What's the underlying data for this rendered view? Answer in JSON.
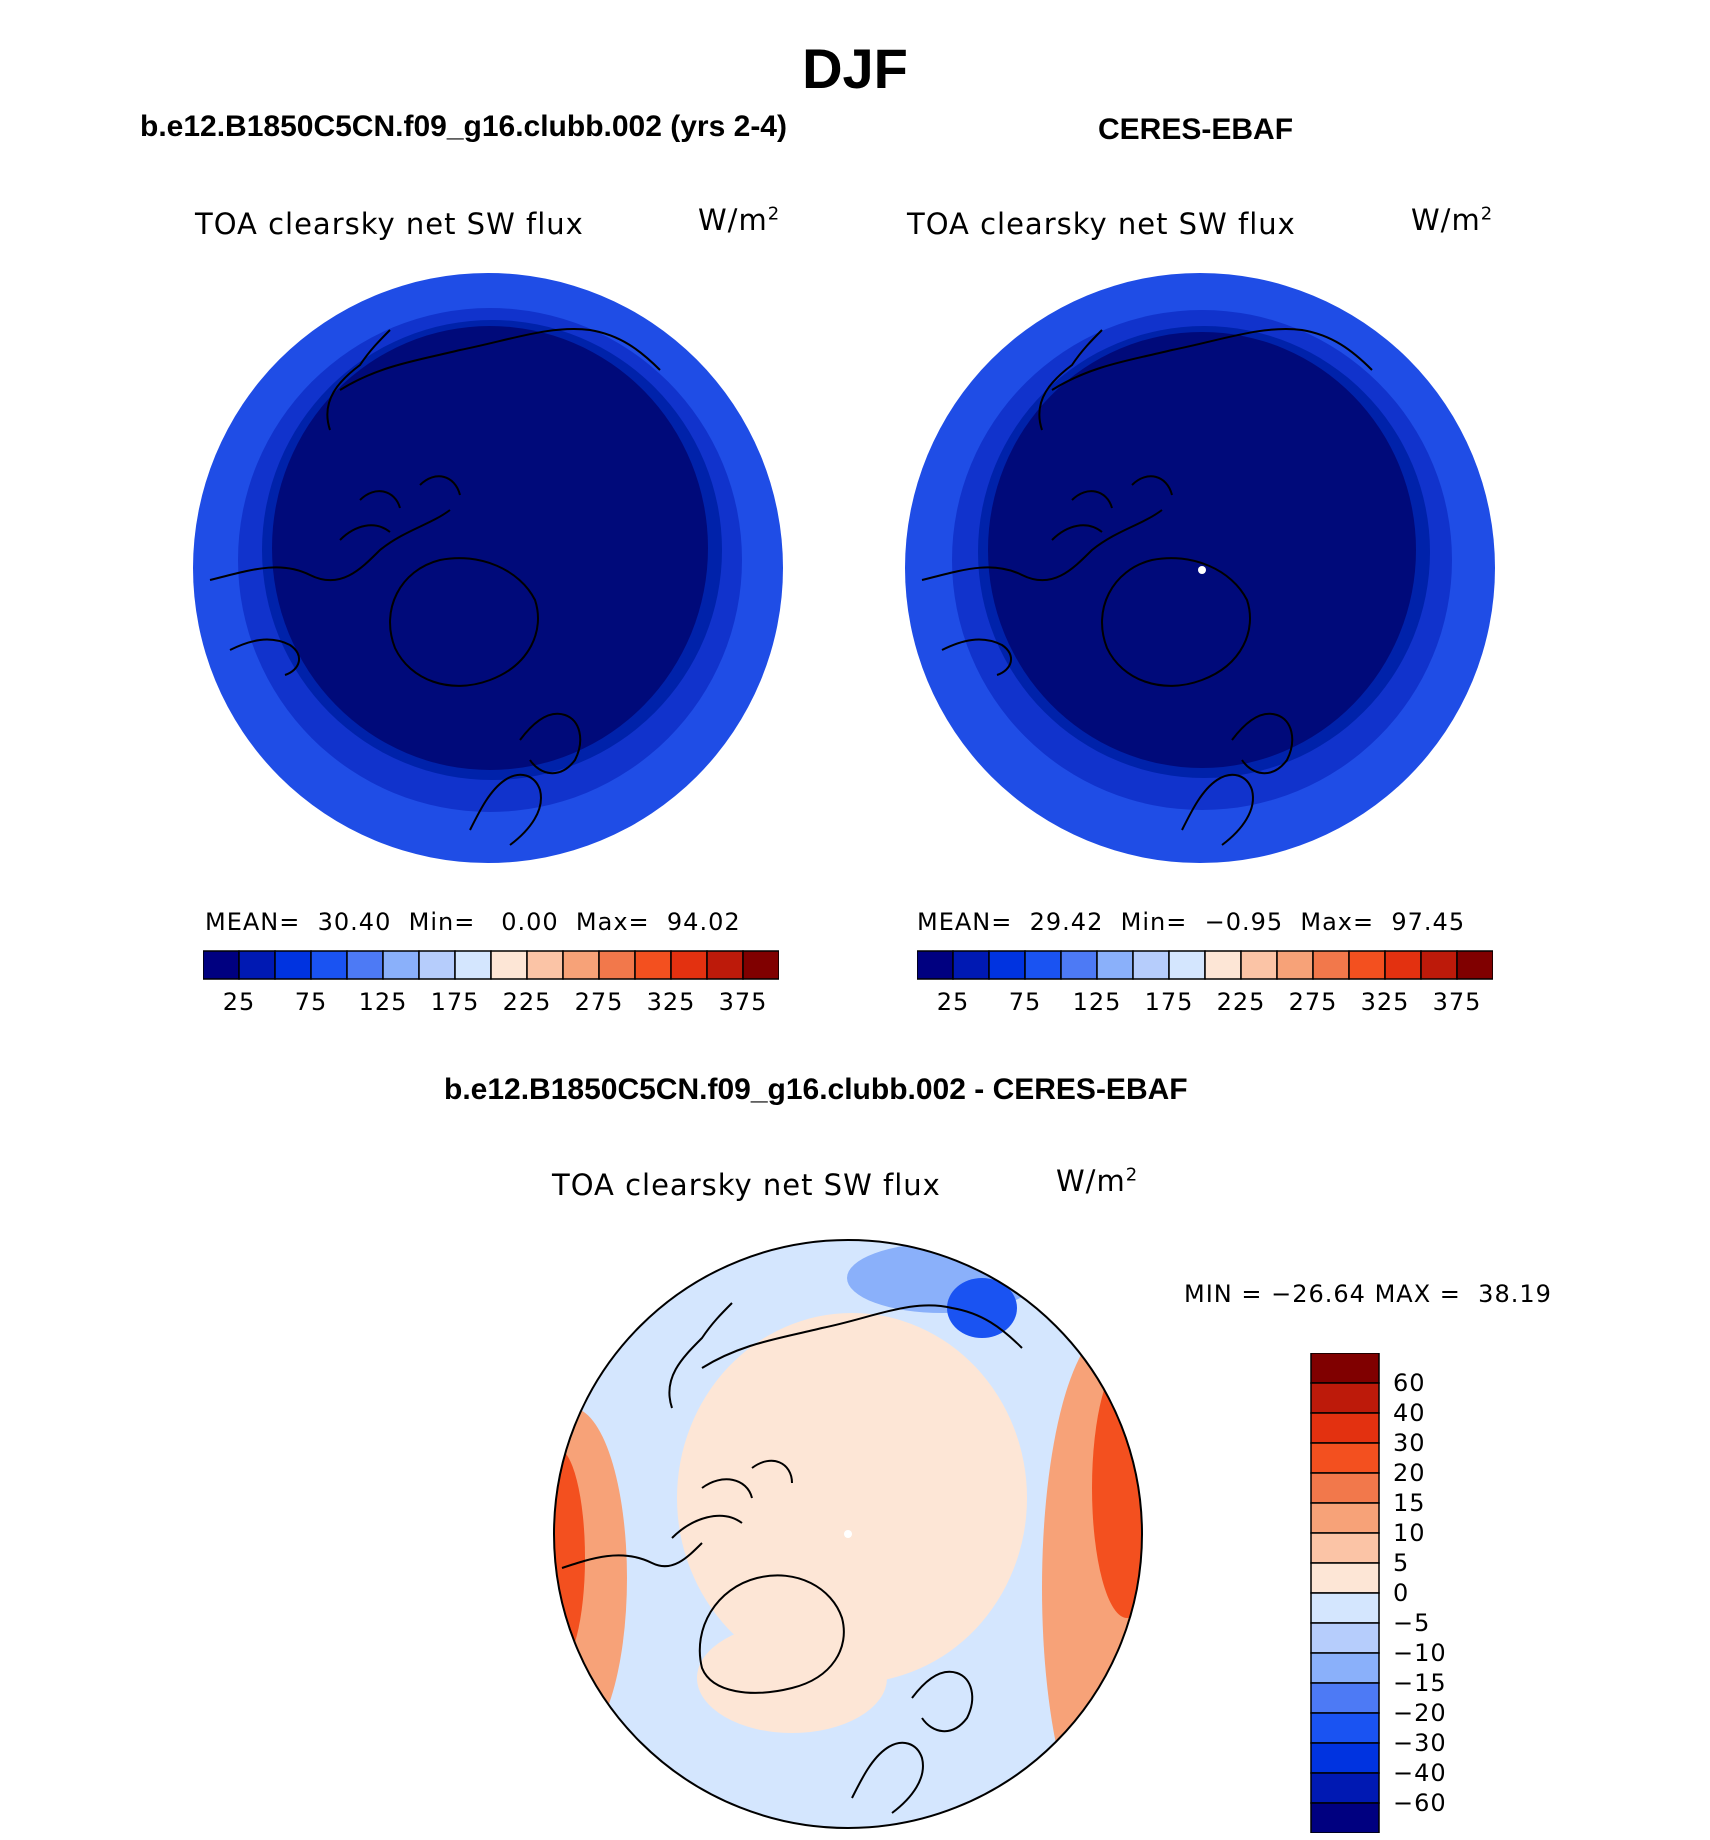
{
  "title": "DJF",
  "colors": {
    "model_levels": [
      "#000080",
      "#0019b3",
      "#0033e0",
      "#1a53f2",
      "#4d7af5",
      "#8ab0fa",
      "#b6cdfc",
      "#d4e6fe",
      "#fde6d6",
      "#fbc4a6",
      "#f7a278",
      "#f2784b",
      "#f3501f",
      "#e33110",
      "#bd1a0a",
      "#800000"
    ],
    "diff_levels": [
      "#000080",
      "#0019b3",
      "#0033e0",
      "#1a53f2",
      "#4d7af5",
      "#8ab0fa",
      "#b6cdfc",
      "#d4e6fe",
      "#fde6d6",
      "#fbc4a6",
      "#f7a278",
      "#f2784b",
      "#f3501f",
      "#e33110",
      "#bd1a0a",
      "#800000"
    ],
    "coast": "#000000",
    "ocean_outer": "#1f4de6",
    "ring2": "#1133cc",
    "ring3": "#0022aa",
    "core": "#000a7a"
  },
  "chart_data": [
    {
      "type": "heatmap",
      "panel": "model",
      "title": "b.e12.B1850C5CN.f09_g16.clubb.002 (yrs 2-4)",
      "variable": "TOA clearsky net SW flux",
      "units": "W/m",
      "units_sup": "2",
      "stats": {
        "mean_label": "MEAN=",
        "mean": "30.40",
        "min_label": "Min=",
        "min": "0.00",
        "max_label": "Max=",
        "max": "94.02"
      },
      "colorbar_ticks": [
        "25",
        "75",
        "125",
        "175",
        "225",
        "275",
        "325",
        "375"
      ],
      "levels": [
        0,
        25,
        50,
        75,
        100,
        125,
        150,
        175,
        200,
        225,
        250,
        275,
        300,
        325,
        350,
        375,
        400
      ],
      "projection": "north polar stereographic"
    },
    {
      "type": "heatmap",
      "panel": "obs",
      "title": "CERES-EBAF",
      "variable": "TOA clearsky net SW flux",
      "units": "W/m",
      "units_sup": "2",
      "stats": {
        "mean_label": "MEAN=",
        "mean": "29.42",
        "min_label": "Min=",
        "min": "−0.95",
        "max_label": "Max=",
        "max": "97.45"
      },
      "colorbar_ticks": [
        "25",
        "75",
        "125",
        "175",
        "225",
        "275",
        "325",
        "375"
      ],
      "levels": [
        0,
        25,
        50,
        75,
        100,
        125,
        150,
        175,
        200,
        225,
        250,
        275,
        300,
        325,
        350,
        375,
        400
      ],
      "projection": "north polar stereographic"
    },
    {
      "type": "heatmap",
      "panel": "difference",
      "title": "b.e12.B1850C5CN.f09_g16.clubb.002 - CERES-EBAF",
      "variable": "TOA clearsky net SW flux",
      "units": "W/m",
      "units_sup": "2",
      "stats": {
        "min_label": "MIN =",
        "min": "−26.64",
        "max_label": "MAX =",
        "max": "38.19"
      },
      "colorbar_ticks": [
        "60",
        "40",
        "30",
        "20",
        "15",
        "10",
        "5",
        "0",
        "−5",
        "−10",
        "−15",
        "−20",
        "−30",
        "−40",
        "−60"
      ],
      "projection": "north polar stereographic"
    }
  ]
}
